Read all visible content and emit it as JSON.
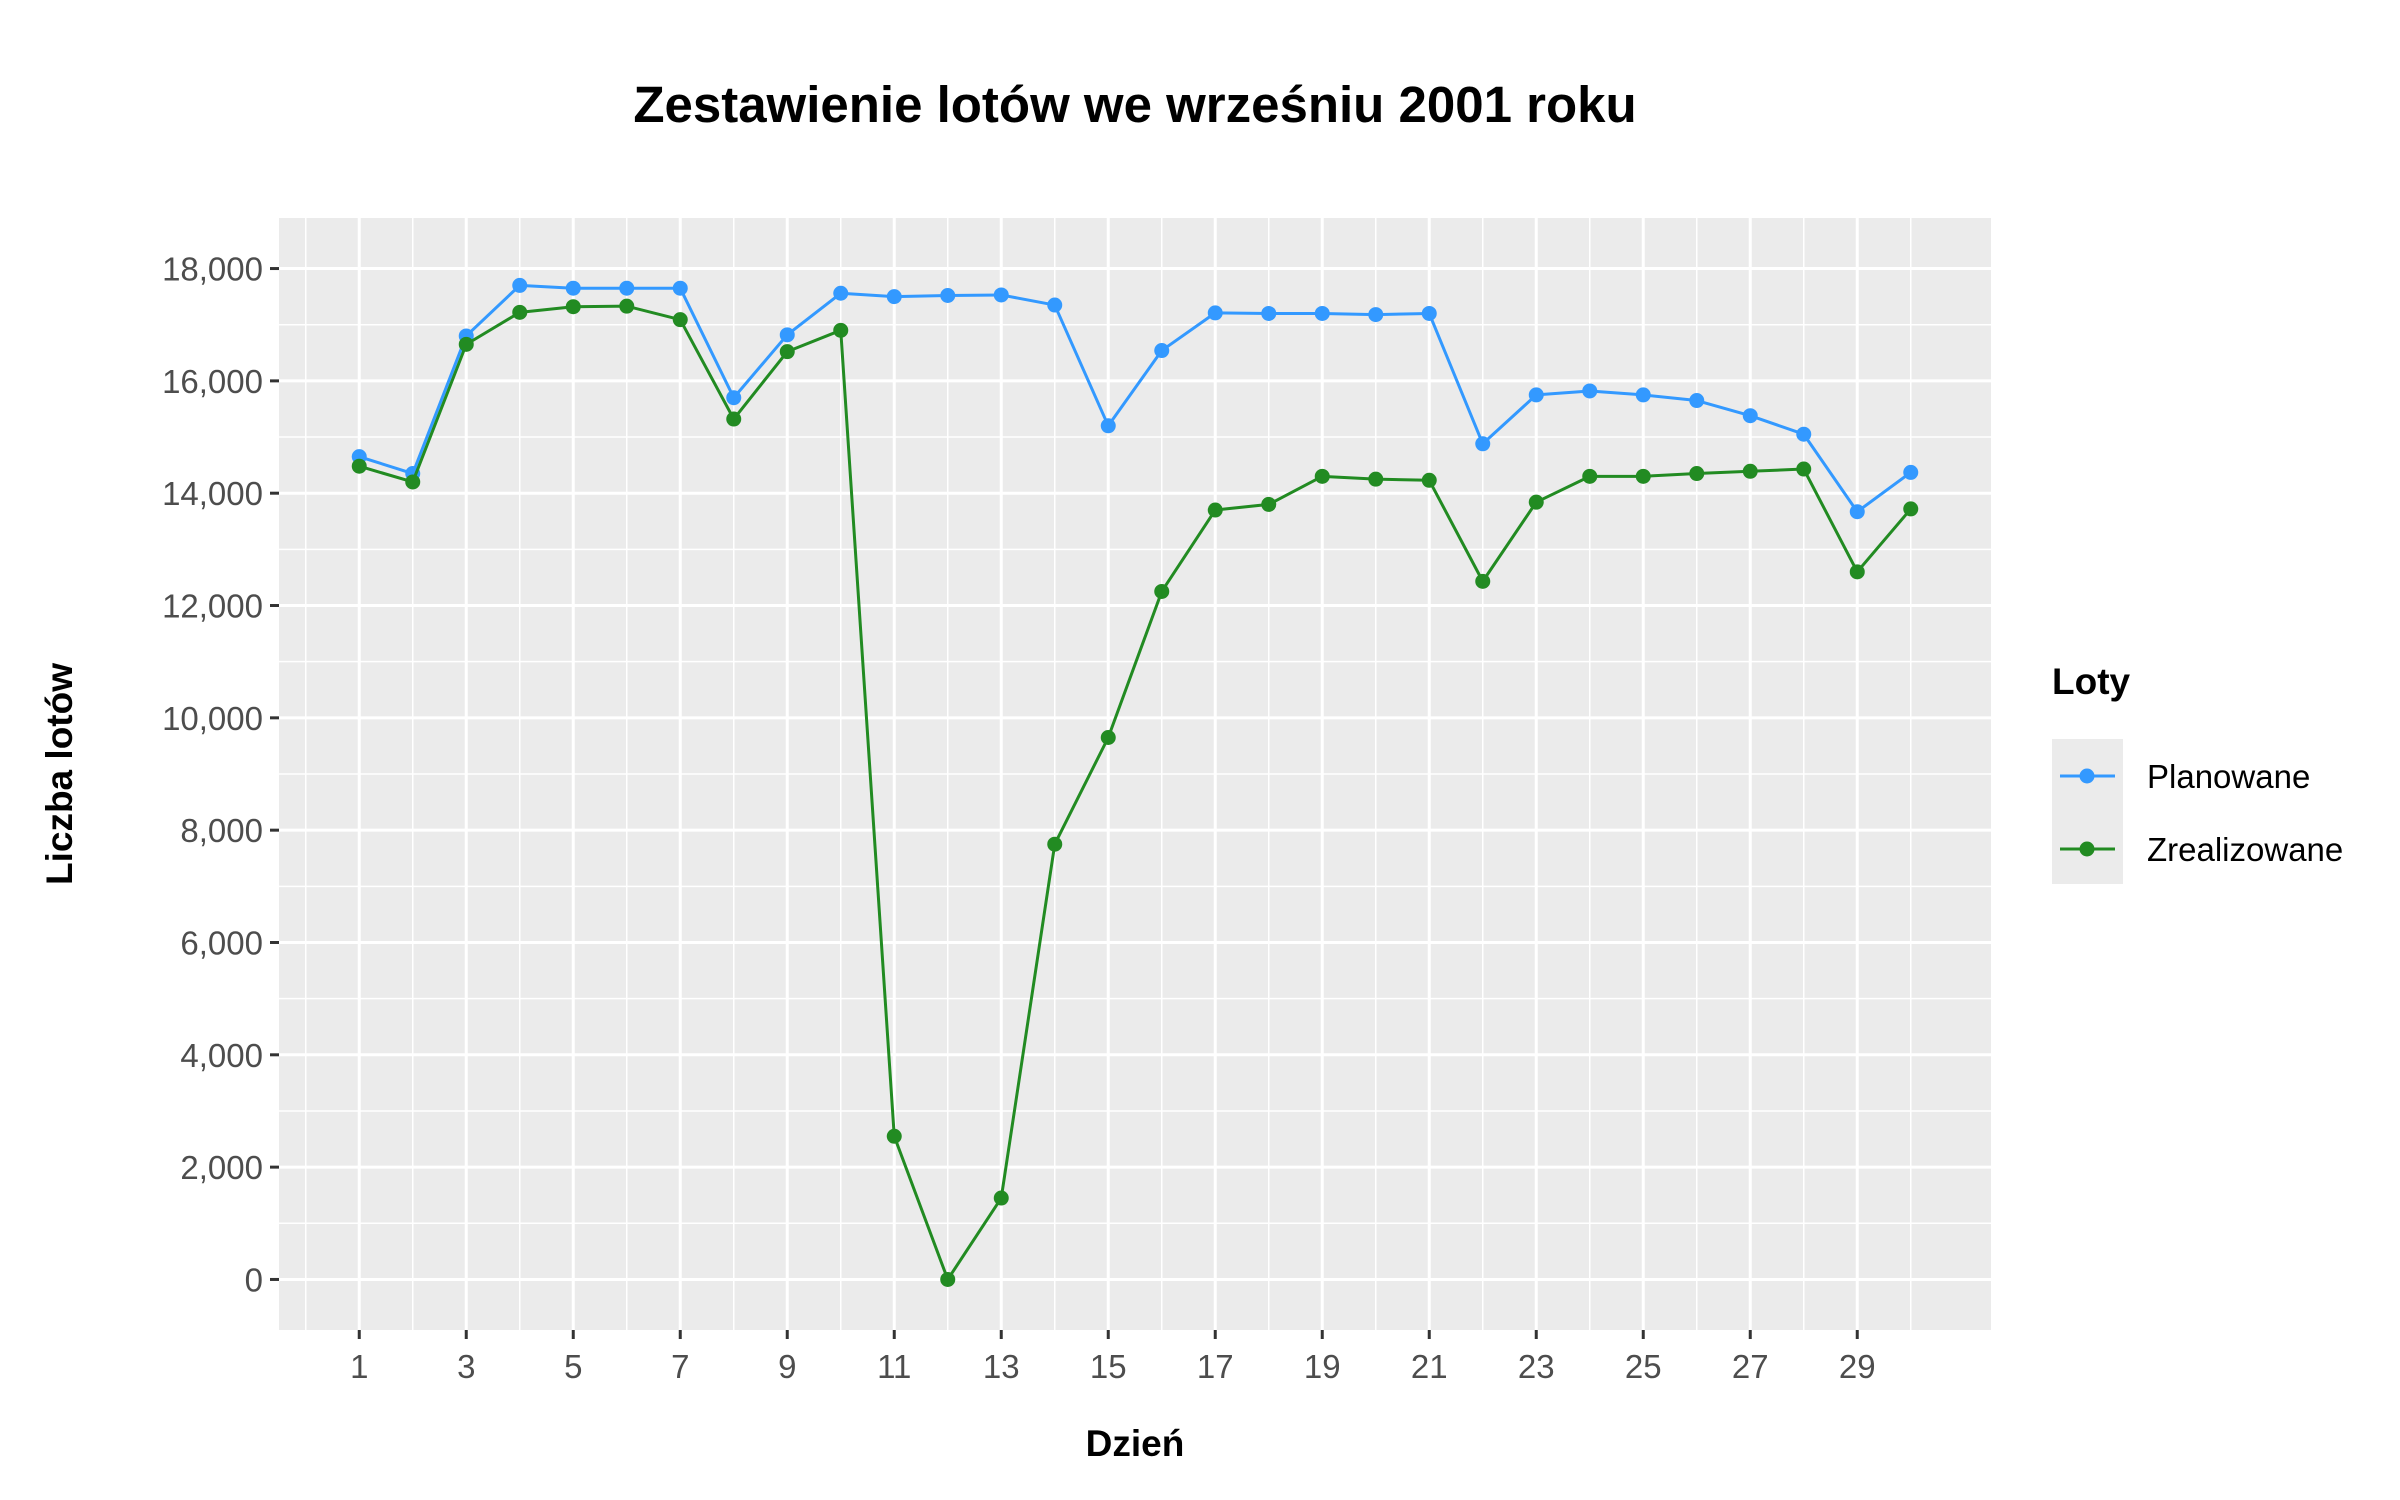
{
  "chart_data": {
    "type": "line",
    "title": "Zestawienie lotów we wrześniu 2001 roku",
    "xlabel": "Dzień",
    "ylabel": "Liczba lotów",
    "x": [
      1,
      2,
      3,
      4,
      5,
      6,
      7,
      8,
      9,
      10,
      11,
      12,
      13,
      14,
      15,
      16,
      17,
      18,
      19,
      20,
      21,
      22,
      23,
      24,
      25,
      26,
      27,
      28,
      29,
      30
    ],
    "xlim": [
      -0.5,
      31.5
    ],
    "xticks": [
      1,
      3,
      5,
      7,
      9,
      11,
      13,
      15,
      17,
      19,
      21,
      23,
      25,
      27,
      29
    ],
    "xtick_labels": [
      "1",
      "3",
      "5",
      "7",
      "9",
      "11",
      "13",
      "15",
      "17",
      "19",
      "21",
      "23",
      "25",
      "27",
      "29"
    ],
    "ylim": [
      -900,
      18900
    ],
    "yticks": [
      0,
      2000,
      4000,
      6000,
      8000,
      10000,
      12000,
      14000,
      16000,
      18000
    ],
    "ytick_labels": [
      "0",
      "2,000",
      "4,000",
      "6,000",
      "8,000",
      "10,000",
      "12,000",
      "14,000",
      "16,000",
      "18,000"
    ],
    "grid": true,
    "legend": {
      "title": "Loty",
      "placement": "right"
    },
    "series": [
      {
        "name": "Planowane",
        "color": "#3399ff",
        "values": [
          14650,
          14350,
          16800,
          17700,
          17650,
          17650,
          17650,
          15700,
          16820,
          17560,
          17500,
          17520,
          17530,
          17350,
          15200,
          16540,
          17210,
          17200,
          17200,
          17180,
          17200,
          14880,
          15750,
          15820,
          15750,
          15650,
          15380,
          15050,
          13670,
          14370
        ]
      },
      {
        "name": "Zrealizowane",
        "color": "#228b22",
        "values": [
          14480,
          14200,
          16650,
          17220,
          17320,
          17330,
          17090,
          15320,
          16520,
          16900,
          2550,
          0,
          1450,
          7750,
          9650,
          12250,
          13700,
          13800,
          14300,
          14250,
          14230,
          12430,
          13840,
          14300,
          14300,
          14350,
          14390,
          14430,
          12600,
          13720
        ]
      }
    ]
  }
}
